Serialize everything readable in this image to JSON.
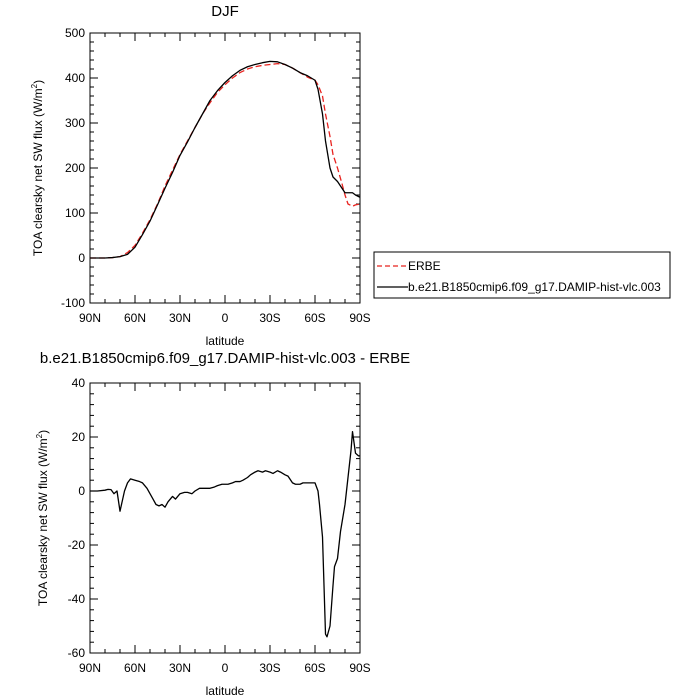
{
  "chart_data": [
    {
      "type": "line",
      "title": "DJF",
      "xlabel": "latitude",
      "ylabel": "TOA clearsky net SW flux (W/m²)",
      "ylabel_main": "TOA clearsky net SW flux (W/m",
      "ylabel_sup": "2",
      "ylabel_end": ")",
      "xlim": [
        90,
        -90
      ],
      "ylim": [
        -100,
        500
      ],
      "x_ticks": [
        90,
        60,
        30,
        0,
        -30,
        -60,
        -90
      ],
      "x_tick_labels": [
        "90N",
        "60N",
        "30N",
        "0",
        "30S",
        "60S",
        "90S"
      ],
      "y_ticks": [
        -100,
        0,
        100,
        200,
        300,
        400,
        500
      ],
      "y_tick_labels": [
        "-100",
        "0",
        "100",
        "200",
        "300",
        "400",
        "500"
      ],
      "legend_position": "right",
      "series": [
        {
          "name": "ERBE",
          "color": "#e8231f",
          "dash": true,
          "x": [
            90,
            80,
            75,
            70,
            65,
            60,
            55,
            50,
            45,
            40,
            35,
            30,
            25,
            20,
            15,
            10,
            5,
            0,
            -5,
            -10,
            -15,
            -20,
            -25,
            -30,
            -35,
            -40,
            -45,
            -50,
            -55,
            -60,
            -62,
            -65,
            -67,
            -70,
            -72,
            -75,
            -78,
            -80,
            -82,
            -85,
            -87,
            -90
          ],
          "y": [
            0,
            0,
            1,
            3,
            12,
            28,
            55,
            85,
            120,
            160,
            195,
            230,
            260,
            290,
            320,
            345,
            368,
            385,
            400,
            412,
            420,
            425,
            428,
            430,
            432,
            430,
            422,
            412,
            402,
            395,
            385,
            360,
            320,
            270,
            230,
            200,
            165,
            140,
            120,
            115,
            118,
            120
          ]
        },
        {
          "name": "b.e21.B1850cmip6.f09_g17.DAMIP-hist-vlc.003",
          "color": "#000000",
          "dash": false,
          "x": [
            90,
            80,
            75,
            70,
            65,
            60,
            55,
            50,
            45,
            40,
            35,
            30,
            25,
            20,
            15,
            10,
            5,
            0,
            -5,
            -10,
            -15,
            -20,
            -25,
            -30,
            -35,
            -40,
            -45,
            -50,
            -55,
            -60,
            -62,
            -65,
            -67,
            -70,
            -72,
            -75,
            -78,
            -80,
            -82,
            -85,
            -87,
            -90
          ],
          "y": [
            0,
            0,
            1,
            3,
            8,
            24,
            52,
            82,
            118,
            155,
            190,
            228,
            258,
            290,
            320,
            350,
            372,
            390,
            405,
            417,
            425,
            430,
            434,
            437,
            436,
            430,
            422,
            412,
            405,
            395,
            375,
            320,
            260,
            200,
            180,
            170,
            155,
            145,
            145,
            145,
            140,
            135
          ]
        }
      ]
    },
    {
      "type": "line",
      "title": "b.e21.B1850cmip6.f09_g17.DAMIP-hist-vlc.003 - ERBE",
      "xlabel": "latitude",
      "ylabel": "TOA clearsky net SW flux (W/m²)",
      "ylabel_main": "TOA clearsky net SW flux (W/m",
      "ylabel_sup": "2",
      "ylabel_end": ")",
      "xlim": [
        90,
        -90
      ],
      "ylim": [
        -60,
        40
      ],
      "x_ticks": [
        90,
        60,
        30,
        0,
        -30,
        -60,
        -90
      ],
      "x_tick_labels": [
        "90N",
        "60N",
        "30N",
        "0",
        "30S",
        "60S",
        "90S"
      ],
      "y_ticks": [
        -60,
        -40,
        -20,
        0,
        20,
        40
      ],
      "y_tick_labels": [
        "-60",
        "-40",
        "-20",
        "0",
        "20",
        "40"
      ],
      "series": [
        {
          "name": "",
          "color": "#000000",
          "dash": false,
          "x": [
            90,
            85,
            80,
            78,
            76,
            74,
            72,
            70,
            67,
            65,
            63,
            60,
            57,
            55,
            52,
            50,
            48,
            46,
            44,
            42,
            40,
            38,
            35,
            33,
            30,
            27,
            25,
            22,
            20,
            17,
            15,
            12,
            10,
            7,
            5,
            2,
            0,
            -2,
            -5,
            -7,
            -10,
            -12,
            -15,
            -17,
            -20,
            -22,
            -25,
            -27,
            -30,
            -32,
            -35,
            -37,
            -40,
            -42,
            -45,
            -47,
            -50,
            -52,
            -55,
            -57,
            -60,
            -62,
            -63,
            -65,
            -66,
            -67,
            -68,
            -70,
            -72,
            -73,
            -75,
            -77,
            -80,
            -82,
            -84,
            -85,
            -87,
            -89,
            -90
          ],
          "y": [
            0,
            0,
            0.3,
            0.6,
            0.5,
            -1,
            0,
            -7.5,
            0,
            3,
            4.5,
            4,
            3.5,
            3,
            1,
            -1,
            -3,
            -5,
            -5.5,
            -5,
            -6,
            -4,
            -2,
            -3,
            -1,
            -0.5,
            -0.5,
            -1,
            0,
            1,
            1,
            1,
            1,
            1.5,
            2,
            2.5,
            2.5,
            2.5,
            3,
            3.5,
            3.5,
            4,
            5,
            6,
            7,
            7.5,
            7,
            7.5,
            7,
            6.5,
            7.5,
            7,
            6,
            5.5,
            3,
            2.5,
            2.5,
            3,
            3,
            3,
            3,
            0,
            -5,
            -17,
            -35,
            -53,
            -54,
            -50,
            -35,
            -28,
            -25,
            -15,
            -5,
            5,
            15,
            22,
            14,
            13,
            13
          ]
        }
      ]
    }
  ]
}
